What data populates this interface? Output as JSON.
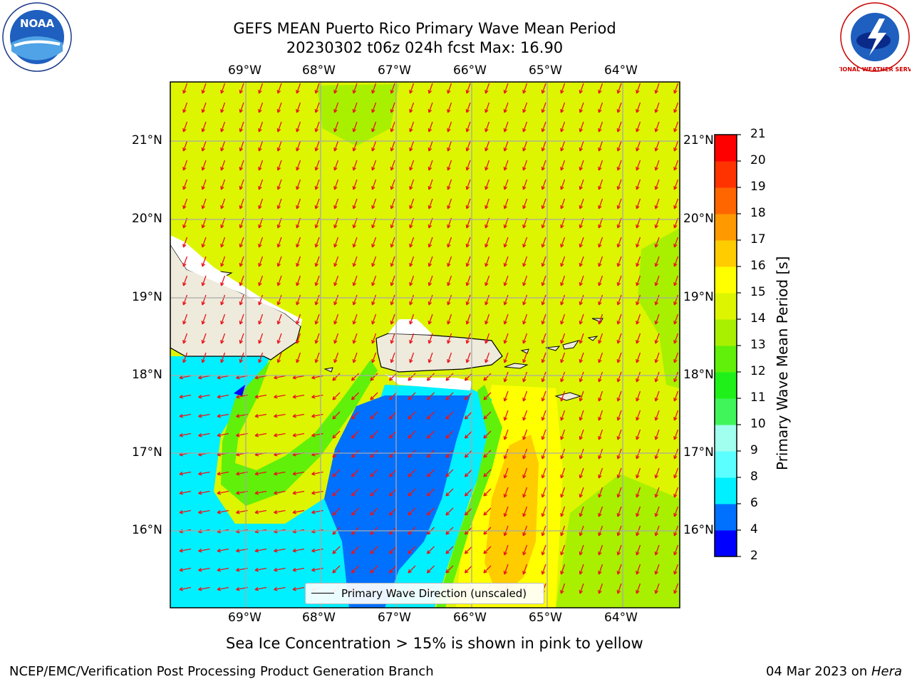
{
  "header": {
    "title_line1": "GEFS MEAN Puerto Rico Primary Wave Mean Period",
    "title_line2": "20230302 t06z 024h fcst   Max: 16.90"
  },
  "logos": {
    "noaa_text": "NOAA",
    "nws_text": "NATIONAL WEATHER SERVICE"
  },
  "map": {
    "lon_labels": [
      "69°W",
      "68°W",
      "67°W",
      "66°W",
      "65°W",
      "64°W"
    ],
    "lat_labels": [
      "21°N",
      "20°N",
      "19°N",
      "18°N",
      "17°N",
      "16°N"
    ],
    "extent": {
      "lon": [
        -70.0,
        -63.25
      ],
      "lat": [
        15.0,
        21.75
      ]
    },
    "land_color": "#efebdc",
    "arrow_color": "#e8141a"
  },
  "legend": {
    "label": "Primary Wave Direction (unscaled)"
  },
  "colorbar": {
    "title": "Primary Wave Mean Period [s]",
    "ticks": [
      "2",
      "4",
      "6",
      "8",
      "9",
      "10",
      "11",
      "12",
      "13",
      "14",
      "15",
      "16",
      "17",
      "18",
      "19",
      "20",
      "21"
    ],
    "colors": [
      "#0000ff",
      "#0070ff",
      "#00f0ff",
      "#5cffff",
      "#a0ffee",
      "#3ff55a",
      "#1ff01a",
      "#60f00a",
      "#a8f000",
      "#ddf500",
      "#ffff00",
      "#ffcc00",
      "#ff9900",
      "#ff6600",
      "#ff3300",
      "#ff0000"
    ]
  },
  "caption": "Sea Ice Concentration > 15% is shown in pink to yellow",
  "footer": {
    "left": "NCEP/EMC/Verification Post Processing Product Generation Branch",
    "date": "04 Mar 2023 on ",
    "machine": "Hera"
  }
}
